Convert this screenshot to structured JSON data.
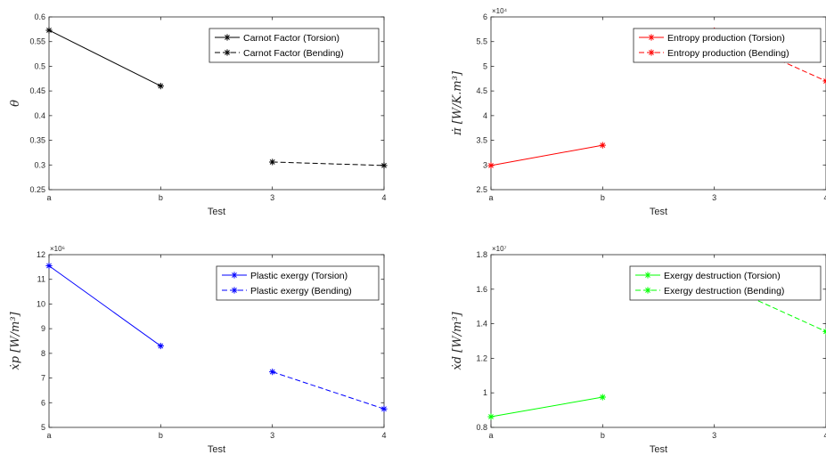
{
  "chart_data": [
    {
      "type": "line",
      "categories": [
        "a",
        "b",
        "3",
        "4"
      ],
      "xlabel": "Test",
      "ylabel": "θ",
      "ylim": [
        0.25,
        0.6
      ],
      "yticks": [
        "0.25",
        "0.3",
        "0.35",
        "0.4",
        "0.45",
        "0.5",
        "0.55",
        "0.6"
      ],
      "multiplier": "",
      "color": "#000000",
      "legend_position": "top-right",
      "series": [
        {
          "name": "Carnot Factor (Torsion)",
          "x": [
            "a",
            "b"
          ],
          "values": [
            0.573,
            0.46
          ],
          "dashed": false
        },
        {
          "name": "Carnot Factor (Bending)",
          "x": [
            "3",
            "4"
          ],
          "values": [
            0.306,
            0.299
          ],
          "dashed": true
        }
      ]
    },
    {
      "type": "line",
      "categories": [
        "a",
        "b",
        "3",
        "4"
      ],
      "xlabel": "Test",
      "ylabel": "π̇ [W/K.m³]",
      "ylim": [
        2.5,
        6
      ],
      "yticks": [
        "2.5",
        "3",
        "3.5",
        "4",
        "4.5",
        "5",
        "5.5",
        "6"
      ],
      "multiplier": "×10⁴",
      "color": "#ff0000",
      "legend_position": "top-right",
      "series": [
        {
          "name": "Entropy production (Torsion)",
          "x": [
            "a",
            "b"
          ],
          "values": [
            2.99,
            3.4
          ],
          "dashed": false
        },
        {
          "name": "Entropy production (Bending)",
          "x": [
            "3",
            "4"
          ],
          "values": [
            5.72,
            4.7
          ],
          "dashed": true
        }
      ]
    },
    {
      "type": "line",
      "categories": [
        "a",
        "b",
        "3",
        "4"
      ],
      "xlabel": "Test",
      "ylabel": "ẋp [W/m³]",
      "ylim": [
        5,
        12
      ],
      "yticks": [
        "5",
        "6",
        "7",
        "8",
        "9",
        "10",
        "11",
        "12"
      ],
      "multiplier": "×10⁶",
      "color": "#0000ff",
      "legend_position": "top-right",
      "series": [
        {
          "name": "Plastic exergy (Torsion)",
          "x": [
            "a",
            "b"
          ],
          "values": [
            11.55,
            8.3
          ],
          "dashed": false
        },
        {
          "name": "Plastic exergy (Bending)",
          "x": [
            "3",
            "4"
          ],
          "values": [
            7.25,
            5.75
          ],
          "dashed": true
        }
      ]
    },
    {
      "type": "line",
      "categories": [
        "a",
        "b",
        "3",
        "4"
      ],
      "xlabel": "Test",
      "ylabel": "ẋd [W/m³]",
      "ylim": [
        0.8,
        1.8
      ],
      "yticks": [
        "0.8",
        "1",
        "1.2",
        "1.4",
        "1.6",
        "1.8"
      ],
      "multiplier": "×10⁷",
      "color": "#00ff00",
      "legend_position": "top-right",
      "series": [
        {
          "name": "Exergy destruction (Torsion)",
          "x": [
            "a",
            "b"
          ],
          "values": [
            0.862,
            0.975
          ],
          "dashed": false
        },
        {
          "name": "Exergy destruction (Bending)",
          "x": [
            "3",
            "4"
          ],
          "values": [
            1.648,
            1.355
          ],
          "dashed": true
        }
      ]
    }
  ]
}
